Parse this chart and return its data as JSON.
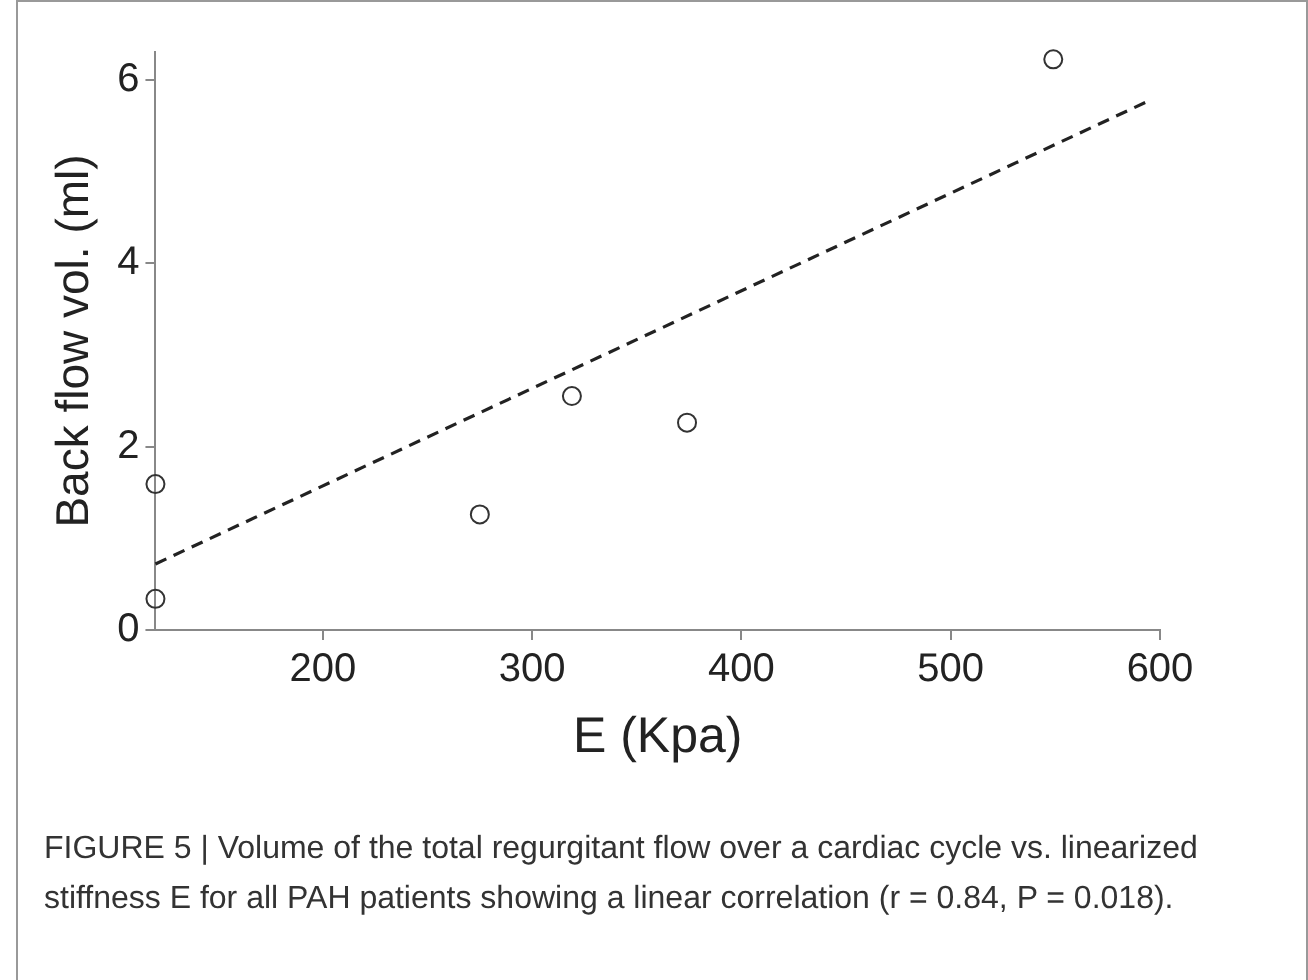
{
  "chart_data": {
    "type": "scatter",
    "xlabel": "E (Kpa)",
    "ylabel": "Back flow vol. (ml)",
    "xlim": [
      120,
      600
    ],
    "ylim": [
      0,
      6.3
    ],
    "xticks": [
      200,
      300,
      400,
      500,
      600
    ],
    "yticks": [
      0,
      2,
      4,
      6
    ],
    "grid": false,
    "legend": false,
    "series": [
      {
        "x": [
          120,
          120,
          275,
          319,
          374,
          549
        ],
        "values": [
          0.34,
          1.59,
          1.26,
          2.55,
          2.26,
          6.22
        ],
        "color": "#333333",
        "marker": "circle"
      },
      {
        "type": "line",
        "x": [
          120,
          593
        ],
        "values": [
          0.72,
          5.75
        ],
        "color": "#222222",
        "marker": "none",
        "line_style": "dashed"
      }
    ],
    "annotations": [
      "FIGURE 5 | Volume of the total regurgitant flow over a cardiac cycle vs. linearized stiffness E for all PAH patients showing a linear correlation (r = 0.84, P = 0.018)."
    ]
  }
}
